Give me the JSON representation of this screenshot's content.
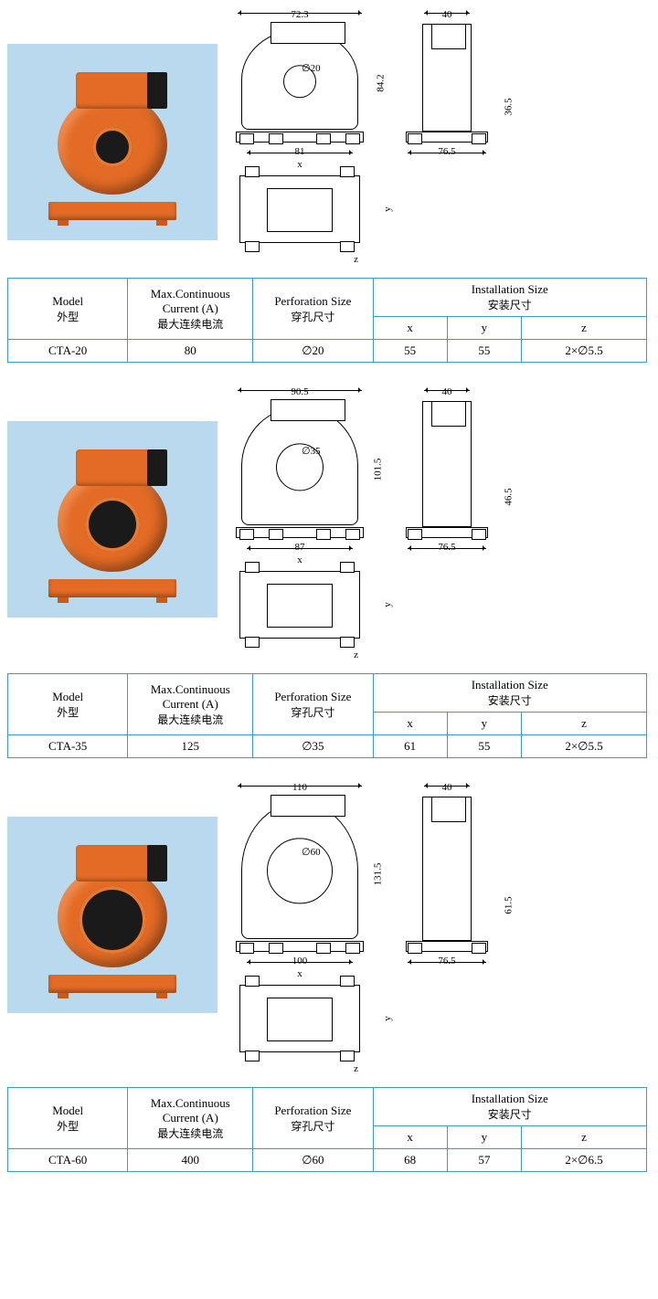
{
  "headers": {
    "model_en": "Model",
    "model_cn": "外型",
    "current_en": "Max.Continuous Current (A)",
    "current_cn": "最大连续电流",
    "perf_en": "Perforation Size",
    "perf_cn": "穿孔尺寸",
    "install_en": "Installation Size",
    "install_cn": "安装尺寸",
    "x": "x",
    "y": "y",
    "z": "z"
  },
  "products": [
    {
      "model": "CTA-20",
      "max_current": "80",
      "perforation": "∅20",
      "install_x": "55",
      "install_y": "55",
      "install_z": "2×∅5.5",
      "dims": {
        "front_width": "72.3",
        "front_base": "81",
        "front_height": "84.2",
        "hole": "∅20",
        "side_top": "40",
        "side_base": "76.5",
        "side_height": "36.5",
        "bottom_x": "x",
        "bottom_y": "y",
        "bottom_z": "z"
      },
      "photo": {
        "hole_size": 44
      },
      "drawing": {
        "front_h": 130,
        "side_h": 130,
        "circle": 34
      }
    },
    {
      "model": "CTA-35",
      "max_current": "125",
      "perforation": "∅35",
      "install_x": "61",
      "install_y": "55",
      "install_z": "2×∅5.5",
      "dims": {
        "front_width": "90.5",
        "front_base": "87",
        "front_height": "101.5",
        "hole": "∅35",
        "side_top": "40",
        "side_base": "76.5",
        "side_height": "46.5",
        "bottom_x": "x",
        "bottom_y": "y",
        "bottom_z": "z"
      },
      "photo": {
        "hole_size": 60
      },
      "drawing": {
        "front_h": 150,
        "side_h": 150,
        "circle": 50
      }
    },
    {
      "model": "CTA-60",
      "max_current": "400",
      "perforation": "∅60",
      "install_x": "68",
      "install_y": "57",
      "install_z": "2×∅6.5",
      "dims": {
        "front_width": "110",
        "front_base": "100",
        "front_height": "131.5",
        "hole": "∅60",
        "side_top": "40",
        "side_base": "76.5",
        "side_height": "61.5",
        "bottom_x": "x",
        "bottom_y": "y",
        "bottom_z": "z"
      },
      "photo": {
        "hole_size": 74
      },
      "drawing": {
        "front_h": 170,
        "side_h": 170,
        "circle": 70
      }
    }
  ],
  "colors": {
    "photo_bg": "#b9d9ef",
    "device_orange": "#e36b25",
    "device_orange_light": "#e67a32",
    "table_border": "#3a9bc9",
    "line": "#000000"
  }
}
